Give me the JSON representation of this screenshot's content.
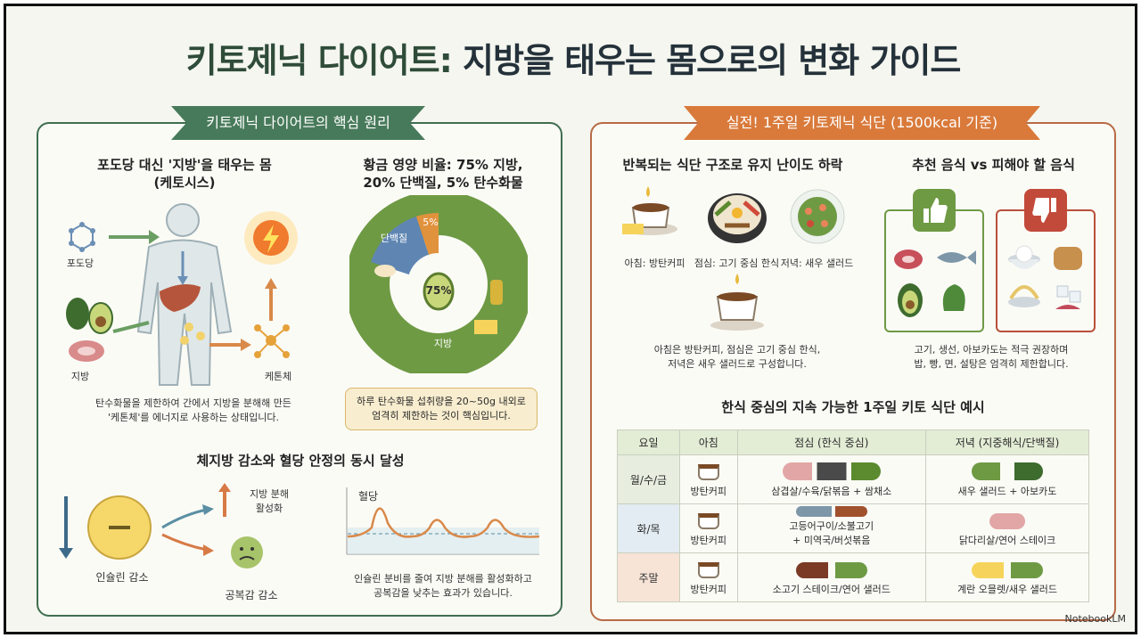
{
  "title": {
    "part1": "키토제닉 다이어트:",
    "part2": "지방을 태우는 몸으로의 변화 가이드"
  },
  "left_panel": {
    "ribbon": "키토제닉 다이어트의 핵심 원리",
    "ketosis": {
      "heading_line1": "포도당 대신 '지방'을 태우는 몸",
      "heading_line2": "(케토시스)",
      "label_glucose": "포도당",
      "label_fat": "지방",
      "label_ketone": "케톤체",
      "caption_line1": "탄수화물을 제한하여 간에서 지방을 분해해 만든",
      "caption_line2": "'케톤체'를 에너지로 사용하는 상태입니다."
    },
    "ratio": {
      "heading_line1": "황금 영양 비율: 75% 지방,",
      "heading_line2": "20% 단백질, 5% 탄수화물",
      "center_label": "75%",
      "label_protein": "단백질",
      "label_carb": "5%",
      "label_fat": "지방",
      "note_line1": "하루 탄수화물 섭취량을 20~50g 내외로",
      "note_line2": "엄격히 제한하는 것이 핵심입니다."
    },
    "effects": {
      "heading": "체지방 감소와 혈당 안정의 동시 달성",
      "label_fat_burn_line1": "지방 분해",
      "label_fat_burn_line2": "활성화",
      "label_insulin": "인슐린 감소",
      "label_hunger": "공복감 감소",
      "graph_label": "혈당",
      "caption_line1": "인슐린 분비를 줄여 지방 분해를 활성화하고",
      "caption_line2": "공복감을 낮추는 효과가 있습니다."
    }
  },
  "right_panel": {
    "ribbon": "실전! 1주일 키토제닉 식단 (1500kcal 기준)",
    "structure": {
      "heading": "반복되는 식단 구조로 유지 난이도 하락",
      "breakfast": "아침: 방탄커피",
      "lunch": "점심: 고기 중심 한식",
      "dinner": "저녁: 새우 샐러드",
      "caption_line1": "아침은 방탄커피, 점심은 고기 중심 한식,",
      "caption_line2": "저녁은 새우 샐러드로 구성합니다."
    },
    "foods": {
      "heading": "추천 음식 vs 피해야 할 음식",
      "caption_line1": "고기, 생선, 아보카도는 적극 권장하며",
      "caption_line2": "밥, 빵, 면, 설탕은 엄격히 제한합니다."
    },
    "table": {
      "heading": "한식 중심의 지속 가능한 1주일 키토 식단 예시",
      "headers": [
        "요일",
        "아침",
        "점심 (한식 중심)",
        "저녁 (지중해식/단백질)"
      ],
      "rows": [
        {
          "day": "월/수/금",
          "breakfast": "방탄커피",
          "lunch": "삼겹살/수육/닭볶음 + 쌈채소",
          "dinner": "새우 샐러드 + 아보카도"
        },
        {
          "day": "화/목",
          "breakfast": "방탄커피",
          "lunch_line1": "고등어구이/소불고기",
          "lunch_line2": "+ 미역국/버섯볶음",
          "dinner": "닭다리살/연어 스테이크"
        },
        {
          "day": "주말",
          "breakfast": "방탄커피",
          "lunch": "소고기 스테이크/연어 샐러드",
          "dinner": "계란 오믈렛/새우 샐러드"
        }
      ]
    }
  },
  "brand": "NotebookLM"
}
